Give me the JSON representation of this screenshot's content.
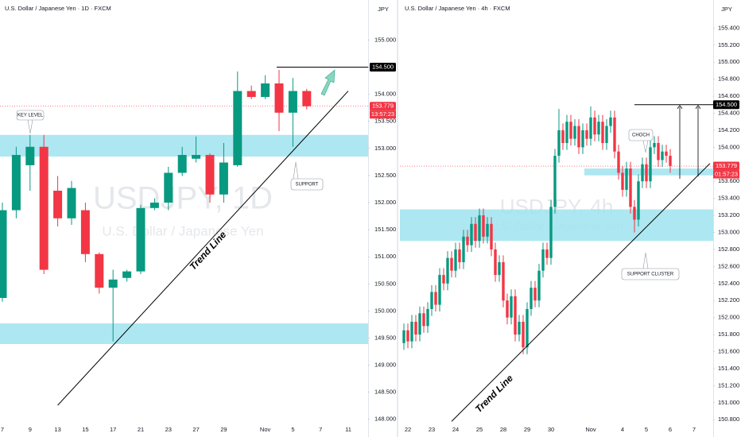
{
  "chart_data": [
    {
      "type": "candlestick",
      "title": "U.S. Dollar / Japanese Yen · 1D · FXCM",
      "currency": "JPY",
      "watermark": "USDJPY, 1D",
      "watermark_subtitle": "U.S. Dollar / Japanese Yen",
      "categories": [
        "7",
        null,
        "9",
        null,
        "13",
        null,
        "15",
        null,
        "17",
        null,
        "21",
        null,
        "23",
        null,
        "27",
        null,
        "29",
        null,
        null,
        "Nov",
        null,
        "5",
        null,
        "7",
        null,
        "11"
      ],
      "open": [
        150.24,
        151.86,
        152.69,
        153.03,
        152.22,
        151.71,
        151.86,
        151.05,
        150.43,
        150.61,
        150.73,
        151.9,
        152.0,
        152.55,
        152.81,
        152.88,
        152.15,
        152.69,
        154.06,
        153.95,
        154.2,
        153.66,
        154.06,
        null,
        null,
        null
      ],
      "high": [
        152.0,
        153.03,
        153.25,
        153.25,
        152.49,
        152.4,
        152.0,
        151.08,
        150.76,
        150.76,
        151.96,
        152.08,
        152.66,
        153.03,
        153.22,
        152.91,
        153.1,
        154.42,
        154.16,
        154.35,
        154.45,
        154.3,
        154.1,
        null,
        null,
        null
      ],
      "low": [
        150.17,
        151.71,
        152.22,
        150.68,
        151.56,
        151.59,
        150.9,
        150.32,
        149.44,
        150.54,
        150.68,
        151.86,
        151.86,
        152.49,
        152.74,
        152.0,
        152.0,
        152.66,
        153.91,
        153.91,
        153.32,
        153.03,
        153.72,
        null,
        null,
        null
      ],
      "close": [
        151.86,
        152.88,
        153.03,
        150.76,
        151.71,
        152.27,
        151.05,
        150.43,
        150.58,
        150.73,
        151.9,
        152.0,
        152.55,
        152.88,
        152.88,
        152.15,
        152.74,
        154.06,
        153.95,
        154.2,
        153.66,
        154.06,
        153.78,
        null,
        null,
        null
      ],
      "up_color": "#089981",
      "down_color": "#f23645",
      "zone_color": "#9fe3ee",
      "ylim": [
        147.82,
        155.74
      ],
      "yticks": [
        {
          "value": 148,
          "label": "148.000"
        },
        {
          "value": 148.5,
          "label": "148.500"
        },
        {
          "value": 149,
          "label": "149.000"
        },
        {
          "value": 149.5,
          "label": "149.500"
        },
        {
          "value": 150,
          "label": "150.000"
        },
        {
          "value": 150.5,
          "label": "150.500"
        },
        {
          "value": 151,
          "label": "151.000"
        },
        {
          "value": 151.5,
          "label": "151.500"
        },
        {
          "value": 152,
          "label": "152.000"
        },
        {
          "value": 152.5,
          "label": "152.500"
        },
        {
          "value": 153,
          "label": "153.000"
        },
        {
          "value": 153.5,
          "label": "153.500"
        },
        {
          "value": 154,
          "label": "154.000"
        },
        {
          "value": 154.5,
          "label": "154.500"
        },
        {
          "value": 155,
          "label": "155.000"
        }
      ],
      "zones": [
        {
          "low": 152.85,
          "high": 153.25
        },
        {
          "low": 149.39,
          "high": 149.77
        }
      ],
      "trend_line": {
        "label": "Trend Line",
        "x": [
          4,
          25
        ],
        "y": [
          148.26,
          154.06
        ]
      },
      "price_labels": [
        {
          "value": 154.5,
          "label": "154.500",
          "color": "#000000"
        },
        {
          "value": 153.779,
          "label": "153.779",
          "sub": "13:57:23",
          "color": "#f23645"
        }
      ],
      "annotations": [
        "KEY LEVEL",
        "SUPPORT"
      ]
    },
    {
      "type": "candlestick",
      "title": "U.S. Dollar / Japanese Yen · 4h · FXCM",
      "currency": "JPY",
      "watermark": "USDJPY, 4h",
      "watermark_subtitle": "U.S. Dollar / Japanese Yen",
      "categories": [
        null,
        "22",
        null,
        null,
        null,
        null,
        null,
        "23",
        null,
        null,
        null,
        null,
        null,
        "24",
        null,
        null,
        null,
        null,
        null,
        "25",
        null,
        null,
        null,
        null,
        null,
        "28",
        null,
        null,
        null,
        null,
        null,
        "29",
        null,
        null,
        null,
        null,
        null,
        "30",
        null,
        null,
        null,
        null,
        null,
        null,
        null,
        null,
        null,
        "Nov",
        null,
        null,
        null,
        null,
        null,
        null,
        null,
        "4",
        null,
        null,
        null,
        null,
        null,
        "5",
        null,
        null,
        null,
        null,
        null,
        "6",
        null,
        null,
        null,
        null,
        null,
        "7",
        null,
        null
      ],
      "open": [
        151.7,
        151.85,
        151.72,
        151.95,
        151.8,
        152.05,
        151.9,
        152.1,
        152.3,
        152.15,
        152.5,
        152.4,
        152.7,
        152.55,
        152.8,
        152.65,
        152.95,
        152.85,
        153.1,
        152.9,
        153.2,
        152.95,
        153.1,
        152.8,
        152.5,
        152.65,
        152.2,
        152.0,
        152.25,
        151.8,
        151.95,
        151.65,
        152.1,
        152.35,
        152.2,
        152.55,
        152.8,
        152.7,
        153.3,
        153.9,
        154.2,
        154.05,
        154.3,
        154.1,
        154.25,
        154.0,
        154.2,
        154.1,
        154.35,
        154.15,
        154.3,
        154.05,
        154.25,
        154.35,
        153.95,
        153.7,
        153.5,
        153.75,
        153.3,
        153.15,
        153.6,
        153.8,
        153.6,
        154.0,
        154.05,
        153.85,
        153.95,
        153.9,
        null,
        null,
        null,
        null,
        null,
        null,
        null,
        null
      ],
      "high": [
        151.93,
        151.93,
        152.03,
        152.03,
        152.13,
        152.13,
        152.18,
        152.38,
        152.38,
        152.58,
        152.58,
        152.78,
        152.78,
        152.88,
        152.88,
        153.03,
        153.03,
        153.18,
        153.18,
        153.28,
        153.28,
        153.18,
        153.18,
        152.88,
        152.73,
        152.73,
        152.28,
        152.33,
        152.33,
        152.03,
        152.03,
        152.18,
        152.43,
        152.43,
        152.63,
        152.88,
        152.88,
        153.38,
        153.98,
        154.45,
        154.28,
        154.38,
        154.38,
        154.33,
        154.33,
        154.28,
        154.28,
        154.48,
        154.43,
        154.38,
        154.38,
        154.33,
        154.43,
        154.43,
        154.03,
        153.78,
        153.83,
        153.83,
        153.38,
        153.68,
        153.88,
        153.88,
        154.08,
        154.13,
        154.13,
        154.03,
        154.03,
        153.98,
        null,
        null,
        null,
        null,
        null,
        null,
        null,
        null
      ],
      "low": [
        151.62,
        151.64,
        151.64,
        151.72,
        151.72,
        151.82,
        151.82,
        152.02,
        152.07,
        152.07,
        152.32,
        152.32,
        152.47,
        152.47,
        152.57,
        152.57,
        152.77,
        152.77,
        152.82,
        152.82,
        152.87,
        152.87,
        152.72,
        152.42,
        152.42,
        152.12,
        151.92,
        151.92,
        151.72,
        151.72,
        151.57,
        151.57,
        152.02,
        152.12,
        152.12,
        152.47,
        152.62,
        152.62,
        153.22,
        153.82,
        153.97,
        153.97,
        154.02,
        154.02,
        153.92,
        153.92,
        154.02,
        154.02,
        154.07,
        154.07,
        153.97,
        153.97,
        154.17,
        153.87,
        153.62,
        153.42,
        153.42,
        153.22,
        153.0,
        153.07,
        153.52,
        153.52,
        153.52,
        153.92,
        153.77,
        153.77,
        153.82,
        153.7,
        null,
        null,
        null,
        null,
        null,
        null,
        null,
        null
      ],
      "close": [
        151.85,
        151.72,
        151.95,
        151.8,
        152.05,
        151.9,
        152.1,
        152.3,
        152.15,
        152.5,
        152.4,
        152.7,
        152.55,
        152.8,
        152.65,
        152.95,
        152.85,
        153.1,
        152.9,
        153.2,
        152.95,
        153.1,
        152.8,
        152.5,
        152.65,
        152.2,
        152.0,
        152.25,
        151.8,
        151.95,
        151.65,
        152.1,
        152.35,
        152.2,
        152.55,
        152.8,
        152.7,
        153.3,
        153.9,
        154.2,
        154.05,
        154.3,
        154.1,
        154.25,
        154.0,
        154.2,
        154.1,
        154.35,
        154.15,
        154.3,
        154.05,
        154.25,
        154.35,
        153.95,
        153.7,
        153.5,
        153.75,
        153.3,
        153.15,
        153.6,
        153.8,
        153.6,
        154.0,
        154.05,
        153.85,
        153.95,
        153.9,
        153.78,
        null,
        null,
        null,
        null,
        null,
        null,
        null,
        null
      ],
      "up_color": "#089981",
      "down_color": "#f23645",
      "zone_color": "#9fe3ee",
      "ylim": [
        150.69,
        155.73
      ],
      "yticks": [
        {
          "value": 150.8,
          "label": "150.800"
        },
        {
          "value": 151,
          "label": "151.000"
        },
        {
          "value": 151.2,
          "label": "151.200"
        },
        {
          "value": 151.4,
          "label": "151.400"
        },
        {
          "value": 151.6,
          "label": "151.600"
        },
        {
          "value": 151.8,
          "label": "151.800"
        },
        {
          "value": 152,
          "label": "152.000"
        },
        {
          "value": 152.2,
          "label": "152.200"
        },
        {
          "value": 152.4,
          "label": "152.400"
        },
        {
          "value": 152.6,
          "label": "152.600"
        },
        {
          "value": 152.8,
          "label": "152.800"
        },
        {
          "value": 153,
          "label": "153.000"
        },
        {
          "value": 153.2,
          "label": "153.200"
        },
        {
          "value": 153.4,
          "label": "153.400"
        },
        {
          "value": 153.6,
          "label": "153.600"
        },
        {
          "value": 153.8,
          "label": "153.800"
        },
        {
          "value": 154,
          "label": "154.000"
        },
        {
          "value": 154.2,
          "label": "154.200"
        },
        {
          "value": 154.4,
          "label": "154.400"
        },
        {
          "value": 154.6,
          "label": "154.600"
        },
        {
          "value": 154.8,
          "label": "154.800"
        },
        {
          "value": 155,
          "label": "155.000"
        },
        {
          "value": 155.2,
          "label": "155.200"
        },
        {
          "value": 155.4,
          "label": "155.400"
        }
      ],
      "zones": [
        {
          "low": 153.67,
          "high": 153.75
        },
        {
          "low": 152.9,
          "high": 153.27
        }
      ],
      "trend_line": {
        "label": "Trend Line",
        "x": [
          12,
          77
        ],
        "y": [
          150.78,
          153.81
        ]
      },
      "price_labels": [
        {
          "value": 154.5,
          "label": "154.500",
          "color": "#000000"
        },
        {
          "value": 153.779,
          "label": "153.779",
          "sub": "01:57:23",
          "color": "#f23645"
        }
      ],
      "annotations": [
        "CHOCH",
        "SUPPORT CLUSTER"
      ]
    }
  ]
}
